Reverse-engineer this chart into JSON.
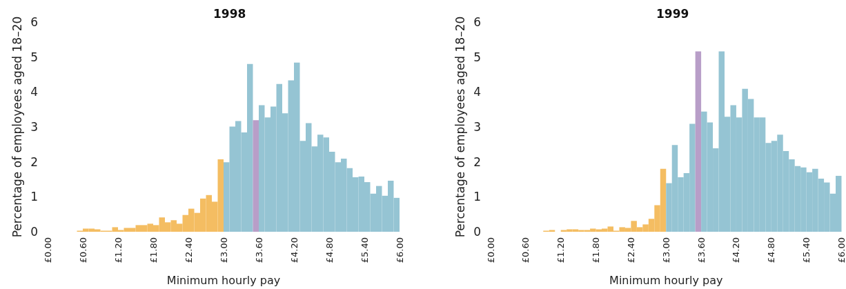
{
  "chart_data": [
    {
      "type": "histogram",
      "title": "1998",
      "xlabel": "Minimum hourly pay",
      "ylabel": "Percentage of employees aged 18–20",
      "bins": [
        0.5,
        0.6,
        0.7,
        0.8,
        0.9,
        1.0,
        1.1,
        1.2,
        1.3,
        1.4,
        1.5,
        1.6,
        1.7,
        1.8,
        1.9,
        2.0,
        2.1,
        2.2,
        2.3,
        2.4,
        2.5,
        2.6,
        2.7,
        2.8,
        2.9,
        3.0,
        3.1,
        3.2,
        3.3,
        3.4,
        3.5,
        3.6,
        3.7,
        3.8,
        3.9,
        4.0,
        4.1,
        4.2,
        4.3,
        4.4,
        4.5,
        4.6,
        4.7,
        4.8,
        4.9,
        5.0,
        5.1,
        5.2,
        5.3,
        5.4,
        5.5,
        5.6,
        5.7,
        5.8,
        5.9,
        6.0
      ],
      "values": [
        0.03,
        0.09,
        0.09,
        0.07,
        0.03,
        0.03,
        0.13,
        0.05,
        0.11,
        0.11,
        0.19,
        0.19,
        0.23,
        0.19,
        0.41,
        0.27,
        0.33,
        0.23,
        0.48,
        0.66,
        0.54,
        0.95,
        1.05,
        0.86,
        2.07,
        1.99,
        3.01,
        3.17,
        2.84,
        4.8,
        3.19,
        3.62,
        3.27,
        3.58,
        4.23,
        3.39,
        4.33,
        4.84,
        2.6,
        3.11,
        2.44,
        2.78,
        2.7,
        2.29,
        1.99,
        2.09,
        1.82,
        1.56,
        1.58,
        1.42,
        1.09,
        1.31,
        1.03,
        1.46,
        0.97
      ],
      "colors": [
        "#f4bd62",
        "#f4bd62",
        "#f4bd62",
        "#f4bd62",
        "#f4bd62",
        "#f4bd62",
        "#f4bd62",
        "#f4bd62",
        "#f4bd62",
        "#f4bd62",
        "#f4bd62",
        "#f4bd62",
        "#f4bd62",
        "#f4bd62",
        "#f4bd62",
        "#f4bd62",
        "#f4bd62",
        "#f4bd62",
        "#f4bd62",
        "#f4bd62",
        "#f4bd62",
        "#f4bd62",
        "#f4bd62",
        "#f4bd62",
        "#f4bd62",
        "#95c4d3",
        "#95c4d3",
        "#95c4d3",
        "#95c4d3",
        "#95c4d3",
        "#b89ec8",
        "#95c4d3",
        "#95c4d3",
        "#95c4d3",
        "#95c4d3",
        "#95c4d3",
        "#95c4d3",
        "#95c4d3",
        "#95c4d3",
        "#95c4d3",
        "#95c4d3",
        "#95c4d3",
        "#95c4d3",
        "#95c4d3",
        "#95c4d3",
        "#95c4d3",
        "#95c4d3",
        "#95c4d3",
        "#95c4d3",
        "#95c4d3",
        "#95c4d3",
        "#95c4d3",
        "#95c4d3",
        "#95c4d3",
        "#95c4d3"
      ],
      "xlim": [
        0,
        6
      ],
      "xticks": [
        {
          "value": 0,
          "label": "£0.00"
        },
        {
          "value": 0.6,
          "label": "£0.60"
        },
        {
          "value": 1.2,
          "label": "£1.20"
        },
        {
          "value": 1.8,
          "label": "£1.80"
        },
        {
          "value": 2.4,
          "label": "£2.40"
        },
        {
          "value": 3.0,
          "label": "£3.00"
        },
        {
          "value": 3.6,
          "label": "£3.60"
        },
        {
          "value": 4.2,
          "label": "£4.20"
        },
        {
          "value": 4.8,
          "label": "£4.80"
        },
        {
          "value": 5.4,
          "label": "£5.40"
        },
        {
          "value": 6.0,
          "label": "£6.00"
        }
      ],
      "ylim": [
        0,
        6
      ],
      "yticks": [
        0,
        1,
        2,
        3,
        4,
        5,
        6
      ],
      "grid": false
    },
    {
      "type": "histogram",
      "title": "1999",
      "xlabel": "Minimum hourly pay",
      "ylabel": "Percentage of employees aged 18–20",
      "bins": [
        0.9,
        1.0,
        1.1,
        1.2,
        1.3,
        1.4,
        1.5,
        1.6,
        1.7,
        1.8,
        1.9,
        2.0,
        2.1,
        2.2,
        2.3,
        2.4,
        2.5,
        2.6,
        2.7,
        2.8,
        2.9,
        3.0,
        3.1,
        3.2,
        3.3,
        3.4,
        3.5,
        3.6,
        3.7,
        3.8,
        3.9,
        4.0,
        4.1,
        4.2,
        4.3,
        4.4,
        4.5,
        4.6,
        4.7,
        4.8,
        4.9,
        5.0,
        5.1,
        5.2,
        5.3,
        5.4,
        5.5,
        5.6,
        5.7,
        5.8,
        5.9,
        6.0
      ],
      "values": [
        0.03,
        0.05,
        0,
        0.05,
        0.07,
        0.07,
        0.05,
        0.05,
        0.09,
        0.07,
        0.09,
        0.15,
        0.03,
        0.13,
        0.11,
        0.31,
        0.13,
        0.21,
        0.37,
        0.76,
        1.8,
        1.39,
        2.48,
        1.56,
        1.68,
        3.09,
        5.16,
        3.44,
        3.13,
        2.39,
        5.16,
        3.29,
        3.62,
        3.27,
        4.09,
        3.8,
        3.27,
        3.27,
        2.54,
        2.6,
        2.78,
        2.31,
        2.07,
        1.88,
        1.84,
        1.7,
        1.8,
        1.52,
        1.41,
        1.09,
        1.6
      ],
      "colors": [
        "#f4bd62",
        "#f4bd62",
        "#f4bd62",
        "#f4bd62",
        "#f4bd62",
        "#f4bd62",
        "#f4bd62",
        "#f4bd62",
        "#f4bd62",
        "#f4bd62",
        "#f4bd62",
        "#f4bd62",
        "#f4bd62",
        "#f4bd62",
        "#f4bd62",
        "#f4bd62",
        "#f4bd62",
        "#f4bd62",
        "#f4bd62",
        "#f4bd62",
        "#f4bd62",
        "#95c4d3",
        "#95c4d3",
        "#95c4d3",
        "#95c4d3",
        "#95c4d3",
        "#b89ec8",
        "#95c4d3",
        "#95c4d3",
        "#95c4d3",
        "#95c4d3",
        "#95c4d3",
        "#95c4d3",
        "#95c4d3",
        "#95c4d3",
        "#95c4d3",
        "#95c4d3",
        "#95c4d3",
        "#95c4d3",
        "#95c4d3",
        "#95c4d3",
        "#95c4d3",
        "#95c4d3",
        "#95c4d3",
        "#95c4d3",
        "#95c4d3",
        "#95c4d3",
        "#95c4d3",
        "#95c4d3",
        "#95c4d3",
        "#95c4d3"
      ],
      "xlim": [
        0,
        6
      ],
      "xticks": [
        {
          "value": 0,
          "label": "£0.00"
        },
        {
          "value": 0.6,
          "label": "£0.60"
        },
        {
          "value": 1.2,
          "label": "£1.20"
        },
        {
          "value": 1.8,
          "label": "£1.80"
        },
        {
          "value": 2.4,
          "label": "£2.40"
        },
        {
          "value": 3.0,
          "label": "£3.00"
        },
        {
          "value": 3.6,
          "label": "£3.60"
        },
        {
          "value": 4.2,
          "label": "£4.20"
        },
        {
          "value": 4.8,
          "label": "£4.80"
        },
        {
          "value": 5.4,
          "label": "£5.40"
        },
        {
          "value": 6.0,
          "label": "£6.00"
        }
      ],
      "ylim": [
        0,
        6
      ],
      "yticks": [
        0,
        1,
        2,
        3,
        4,
        5,
        6
      ],
      "grid": false
    }
  ]
}
